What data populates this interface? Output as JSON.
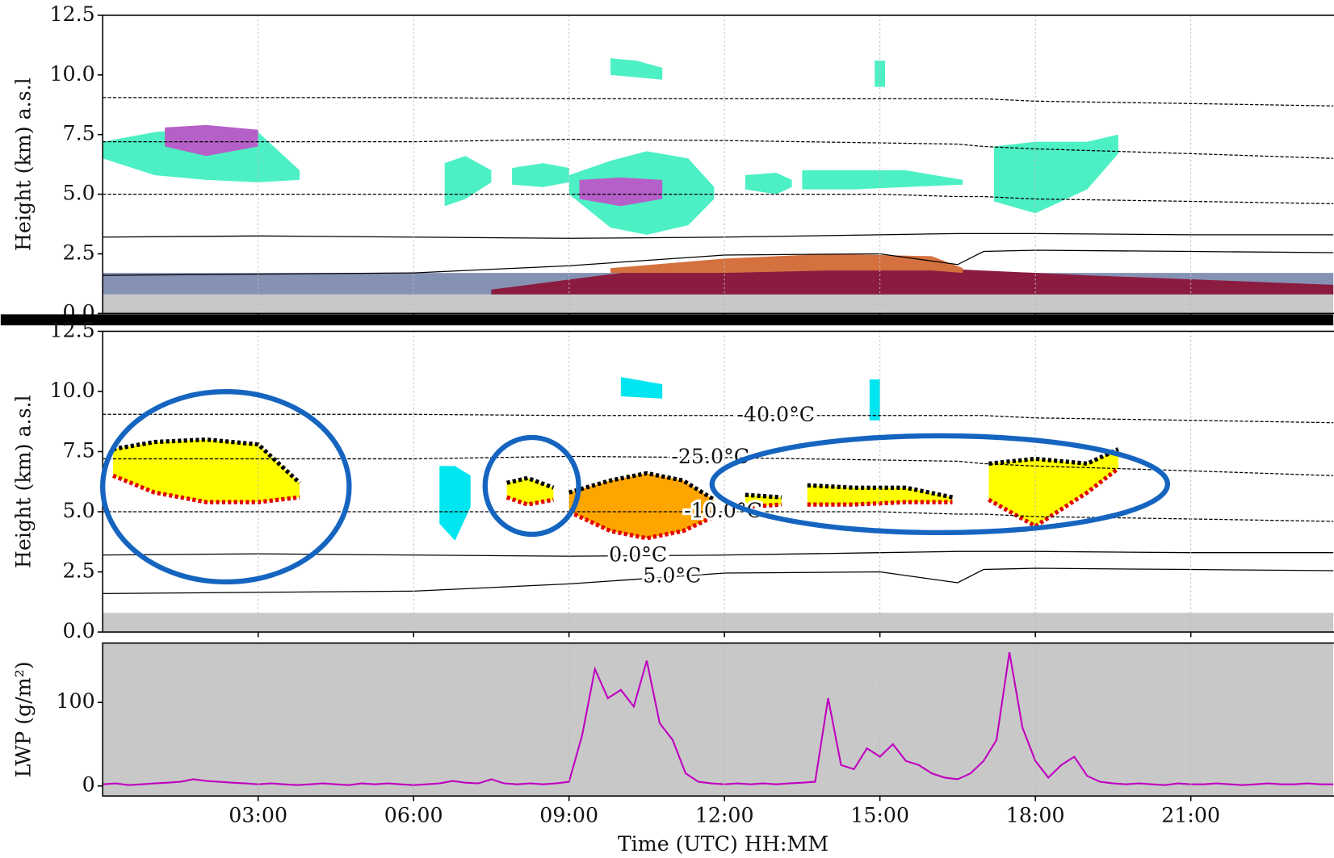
{
  "chart_data": [
    {
      "type": "cloud",
      "ylabel": "Height (km) a.s.l",
      "xlim": [
        0,
        23.75
      ],
      "ylim": [
        0,
        12.5
      ],
      "xticks": [
        3,
        6,
        9,
        12,
        15,
        18,
        21
      ],
      "yticks": [
        {
          "value": 0,
          "label": "0.0"
        },
        2.5,
        {
          "value": 5,
          "label": "5.0"
        },
        7.5,
        {
          "value": 10,
          "label": "10.0"
        },
        12.5
      ],
      "grid": true,
      "regions": [
        {
          "color": "#c8c8c8",
          "x": [
            0,
            23.75
          ],
          "top": [
            0.8,
            0.8
          ],
          "base": [
            0,
            0
          ]
        },
        {
          "color": "#8592b4",
          "x": [
            0,
            23.75
          ],
          "top": [
            1.7,
            1.7
          ],
          "base": [
            0.8,
            0.8
          ]
        },
        {
          "color": "#8b1c40",
          "x": [
            7.5,
            10,
            13,
            16,
            19,
            23.75
          ],
          "top": [
            1.0,
            1.7,
            2.0,
            1.9,
            1.6,
            1.2
          ],
          "base": [
            0.8,
            0.8,
            0.8,
            0.8,
            0.8,
            0.8
          ]
        },
        {
          "color": "#d5703f",
          "x": [
            9.8,
            12,
            14,
            16,
            16.6
          ],
          "top": [
            1.9,
            2.3,
            2.5,
            2.4,
            1.9
          ],
          "base": [
            1.7,
            1.7,
            1.8,
            1.8,
            1.7
          ]
        },
        {
          "color": "#4cf0c4",
          "x": [
            0,
            1,
            2,
            3,
            3.8
          ],
          "top": [
            7.2,
            7.6,
            7.8,
            7.6,
            6.0
          ],
          "base": [
            6.5,
            5.8,
            5.6,
            5.5,
            5.6
          ]
        },
        {
          "color": "#b560c8",
          "x": [
            1.2,
            2,
            3
          ],
          "top": [
            7.8,
            7.9,
            7.7
          ],
          "base": [
            7.0,
            6.6,
            7.0
          ]
        },
        {
          "color": "#4cf0c4",
          "x": [
            6.6,
            7,
            7.5
          ],
          "top": [
            6.3,
            6.6,
            6.0
          ],
          "base": [
            4.5,
            4.8,
            5.5
          ]
        },
        {
          "color": "#4cf0c4",
          "x": [
            7.9,
            8.5,
            9.0
          ],
          "top": [
            6.1,
            6.3,
            6.1
          ],
          "base": [
            5.4,
            5.3,
            5.5
          ]
        },
        {
          "color": "#4cf0c4",
          "x": [
            9.0,
            9.8,
            10.5,
            11.3,
            11.8
          ],
          "top": [
            5.8,
            6.4,
            6.8,
            6.5,
            5.3
          ],
          "base": [
            5.0,
            3.6,
            3.3,
            3.7,
            4.8
          ]
        },
        {
          "color": "#b560c8",
          "x": [
            9.2,
            10,
            10.8
          ],
          "top": [
            5.6,
            5.7,
            5.6
          ],
          "base": [
            4.8,
            4.5,
            4.8
          ]
        },
        {
          "color": "#4cf0c4",
          "x": [
            12.4,
            13.0,
            13.3
          ],
          "top": [
            5.8,
            5.9,
            5.6
          ],
          "base": [
            5.2,
            5.0,
            5.3
          ]
        },
        {
          "color": "#4cf0c4",
          "x": [
            13.5,
            14.5,
            15.5,
            16.6
          ],
          "top": [
            6.0,
            6.0,
            6.0,
            5.6
          ],
          "base": [
            5.2,
            5.2,
            5.3,
            5.4
          ]
        },
        {
          "color": "#4cf0c4",
          "x": [
            17.2,
            18,
            19,
            19.6
          ],
          "top": [
            7.0,
            7.2,
            7.2,
            7.5
          ],
          "base": [
            4.7,
            4.2,
            5.2,
            6.7
          ]
        },
        {
          "color": "#4cf0c4",
          "x": [
            9.8,
            10.3,
            10.8
          ],
          "top": [
            10.7,
            10.6,
            10.3
          ],
          "base": [
            10.0,
            9.9,
            9.8
          ]
        },
        {
          "color": "#4cf0c4",
          "x": [
            14.9,
            15.1
          ],
          "top": [
            10.6,
            10.6
          ],
          "base": [
            9.5,
            9.5
          ]
        }
      ],
      "isotherms": {
        "x": [
          0,
          3,
          6,
          9,
          12,
          15,
          16.5,
          17,
          18,
          21,
          23.75
        ],
        "lines": [
          {
            "values": [
              9.05,
              9.05,
              9.05,
              9.0,
              9.0,
              9.0,
              9.0,
              9.0,
              8.9,
              8.8,
              8.7
            ]
          },
          {
            "values": [
              7.2,
              7.2,
              7.2,
              7.3,
              7.25,
              7.15,
              7.1,
              7.0,
              6.9,
              6.7,
              6.5
            ]
          },
          {
            "values": [
              5.0,
              5.0,
              5.0,
              5.0,
              5.0,
              5.0,
              4.9,
              4.9,
              4.8,
              4.7,
              4.6
            ]
          },
          {
            "values": [
              3.2,
              3.25,
              3.2,
              3.15,
              3.2,
              3.3,
              3.35,
              3.35,
              3.35,
              3.3,
              3.3
            ]
          },
          {
            "values": [
              1.6,
              1.65,
              1.7,
              2.0,
              2.45,
              2.5,
              2.05,
              2.6,
              2.65,
              2.6,
              2.55
            ]
          }
        ]
      }
    },
    {
      "type": "cloud",
      "ylabel": "Height (km) a.s.l",
      "xlim": [
        0,
        23.75
      ],
      "ylim": [
        0,
        12.5
      ],
      "xticks": [
        3,
        6,
        9,
        12,
        15,
        18,
        21
      ],
      "yticks": [
        {
          "value": 0,
          "label": "0.0"
        },
        2.5,
        {
          "value": 5,
          "label": "5.0"
        },
        7.5,
        {
          "value": 10,
          "label": "10.0"
        },
        12.5
      ],
      "grid": true,
      "regions": [
        {
          "color": "#c8c8c8",
          "x": [
            0,
            23.75
          ],
          "top": [
            0.8,
            0.8
          ],
          "base": [
            0,
            0
          ]
        },
        {
          "color": "#ffff00",
          "edges": true,
          "x": [
            0.2,
            1,
            2,
            3,
            3.8
          ],
          "top": [
            7.6,
            7.9,
            8.0,
            7.8,
            6.2
          ],
          "base": [
            6.5,
            5.8,
            5.4,
            5.4,
            5.6
          ]
        },
        {
          "color": "#00e6f0",
          "x": [
            6.5,
            6.8,
            7.1
          ],
          "top": [
            6.9,
            6.9,
            6.5
          ],
          "base": [
            4.5,
            3.8,
            5.2
          ]
        },
        {
          "color": "#ffff00",
          "edges": true,
          "x": [
            7.8,
            8.2,
            8.7
          ],
          "top": [
            6.2,
            6.4,
            6.0
          ],
          "base": [
            5.6,
            5.3,
            5.5
          ]
        },
        {
          "color": "#ffa500",
          "edges": true,
          "x": [
            9.0,
            9.8,
            10.5,
            11.2,
            11.8
          ],
          "top": [
            5.8,
            6.3,
            6.6,
            6.3,
            5.5
          ],
          "base": [
            5.0,
            4.2,
            3.9,
            4.2,
            4.8
          ]
        },
        {
          "color": "#ffff00",
          "edges": true,
          "x": [
            12.4,
            13.1
          ],
          "top": [
            5.7,
            5.6
          ],
          "base": [
            5.2,
            5.3
          ]
        },
        {
          "color": "#ffff00",
          "edges": true,
          "x": [
            13.6,
            14.5,
            15.5,
            16.4
          ],
          "top": [
            6.1,
            6.0,
            6.0,
            5.6
          ],
          "base": [
            5.3,
            5.3,
            5.4,
            5.4
          ]
        },
        {
          "color": "#ffff00",
          "edges": true,
          "x": [
            17.1,
            18,
            19,
            19.6
          ],
          "top": [
            7.0,
            7.2,
            7.0,
            7.6
          ],
          "base": [
            5.5,
            4.4,
            5.8,
            6.8
          ]
        },
        {
          "color": "#00e6f0",
          "x": [
            14.8,
            15.0
          ],
          "top": [
            10.5,
            10.5
          ],
          "base": [
            8.8,
            8.8
          ]
        },
        {
          "color": "#00e6f0",
          "x": [
            10.0,
            10.8
          ],
          "top": [
            10.6,
            10.3
          ],
          "base": [
            9.8,
            9.7
          ]
        }
      ],
      "isotherms": {
        "x": [
          0,
          3,
          6,
          9,
          12,
          15,
          16.5,
          17,
          18,
          21,
          23.75
        ],
        "lines": [
          {
            "label": "-40.0°C",
            "values": [
              9.05,
              9.05,
              9.05,
              9.0,
              9.0,
              9.0,
              9.0,
              9.0,
              8.9,
              8.8,
              8.7
            ]
          },
          {
            "label": "-25.0°C",
            "values": [
              7.2,
              7.2,
              7.2,
              7.3,
              7.25,
              7.15,
              7.1,
              7.0,
              6.9,
              6.7,
              6.5
            ]
          },
          {
            "label": "-10.0°C",
            "values": [
              5.0,
              5.0,
              5.0,
              5.0,
              5.0,
              5.0,
              4.9,
              4.9,
              4.8,
              4.7,
              4.6
            ]
          },
          {
            "label": "0.0°C",
            "values": [
              3.2,
              3.25,
              3.2,
              3.15,
              3.2,
              3.3,
              3.35,
              3.35,
              3.35,
              3.3,
              3.3
            ]
          },
          {
            "label": "5.0°C",
            "values": [
              1.6,
              1.65,
              1.7,
              2.0,
              2.45,
              2.5,
              2.05,
              2.6,
              2.65,
              2.6,
              2.55
            ]
          }
        ]
      }
    },
    {
      "type": "line",
      "ylabel": "LWP (g/m²)",
      "xlabel": "Time (UTC) HH:MM",
      "xlim": [
        0,
        23.75
      ],
      "ylim": [
        -12,
        171
      ],
      "xticks": [
        {
          "value": 3,
          "label": "03:00"
        },
        {
          "value": 6,
          "label": "06:00"
        },
        {
          "value": 9,
          "label": "09:00"
        },
        {
          "value": 12,
          "label": "12:00"
        },
        {
          "value": 15,
          "label": "15:00"
        },
        {
          "value": 18,
          "label": "18:00"
        },
        {
          "value": 21,
          "label": "21:00"
        }
      ],
      "yticks": [
        0,
        100
      ],
      "grid": true,
      "color": "#c000c0",
      "x": [
        0,
        0.25,
        0.5,
        0.75,
        1,
        1.25,
        1.5,
        1.75,
        2,
        2.25,
        2.5,
        2.75,
        3,
        3.25,
        3.5,
        3.75,
        4,
        4.25,
        4.5,
        4.75,
        5,
        5.25,
        5.5,
        5.75,
        6,
        6.25,
        6.5,
        6.75,
        7,
        7.25,
        7.5,
        7.75,
        8,
        8.25,
        8.5,
        8.75,
        9,
        9.25,
        9.5,
        9.75,
        10,
        10.25,
        10.5,
        10.75,
        11,
        11.25,
        11.5,
        11.75,
        12,
        12.25,
        12.5,
        12.75,
        13,
        13.25,
        13.5,
        13.75,
        14,
        14.25,
        14.5,
        14.75,
        15,
        15.25,
        15.5,
        15.75,
        16,
        16.25,
        16.5,
        16.75,
        17,
        17.25,
        17.5,
        17.75,
        18,
        18.25,
        18.5,
        18.75,
        19,
        19.25,
        19.5,
        19.75,
        20,
        20.25,
        20.5,
        20.75,
        21,
        21.25,
        21.5,
        21.75,
        22,
        22.25,
        22.5,
        22.75,
        23,
        23.25,
        23.5,
        23.75
      ],
      "values": [
        2,
        3,
        1,
        2,
        3,
        4,
        5,
        8,
        6,
        5,
        4,
        3,
        2,
        3,
        2,
        1,
        2,
        3,
        2,
        1,
        3,
        2,
        3,
        2,
        1,
        2,
        3,
        6,
        4,
        3,
        8,
        3,
        2,
        3,
        2,
        3,
        5,
        60,
        140,
        105,
        115,
        95,
        150,
        75,
        55,
        15,
        5,
        3,
        2,
        3,
        2,
        3,
        2,
        3,
        4,
        5,
        105,
        25,
        20,
        45,
        35,
        50,
        30,
        25,
        15,
        10,
        8,
        15,
        30,
        55,
        160,
        70,
        30,
        10,
        25,
        35,
        12,
        5,
        3,
        2,
        3,
        2,
        1,
        3,
        2,
        2,
        3,
        2,
        1,
        2,
        3,
        2,
        2,
        3,
        2,
        2
      ]
    }
  ]
}
